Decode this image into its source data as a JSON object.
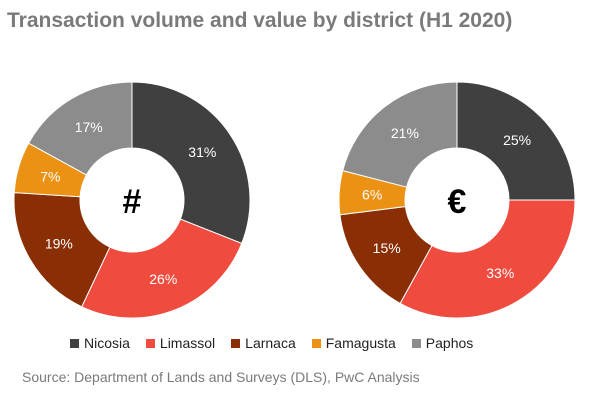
{
  "title": "Transaction volume and value by district (H1 2020)",
  "source": "Source: Department of Lands and Surveys (DLS), PwC Analysis",
  "legend": [
    {
      "label": "Nicosia",
      "color": "#404040"
    },
    {
      "label": "Limassol",
      "color": "#ef4b3f"
    },
    {
      "label": "Larnaca",
      "color": "#8a2e05"
    },
    {
      "label": "Famagusta",
      "color": "#eb9214"
    },
    {
      "label": "Paphos",
      "color": "#8c8c8c"
    }
  ],
  "chart_data": [
    {
      "type": "pie",
      "center_label": "#",
      "categories": [
        "Nicosia",
        "Limassol",
        "Larnaca",
        "Famagusta",
        "Paphos"
      ],
      "values": [
        31,
        26,
        19,
        7,
        17
      ],
      "labels": [
        "31%",
        "26%",
        "19%",
        "7%",
        "17%"
      ],
      "colors": [
        "#404040",
        "#ef4b3f",
        "#8a2e05",
        "#eb9214",
        "#8c8c8c"
      ]
    },
    {
      "type": "pie",
      "center_label": "€",
      "categories": [
        "Nicosia",
        "Limassol",
        "Larnaca",
        "Famagusta",
        "Paphos"
      ],
      "values": [
        25,
        33,
        15,
        6,
        21
      ],
      "labels": [
        "25%",
        "33%",
        "15%",
        "6%",
        "21%"
      ],
      "colors": [
        "#404040",
        "#ef4b3f",
        "#8a2e05",
        "#eb9214",
        "#8c8c8c"
      ]
    }
  ]
}
